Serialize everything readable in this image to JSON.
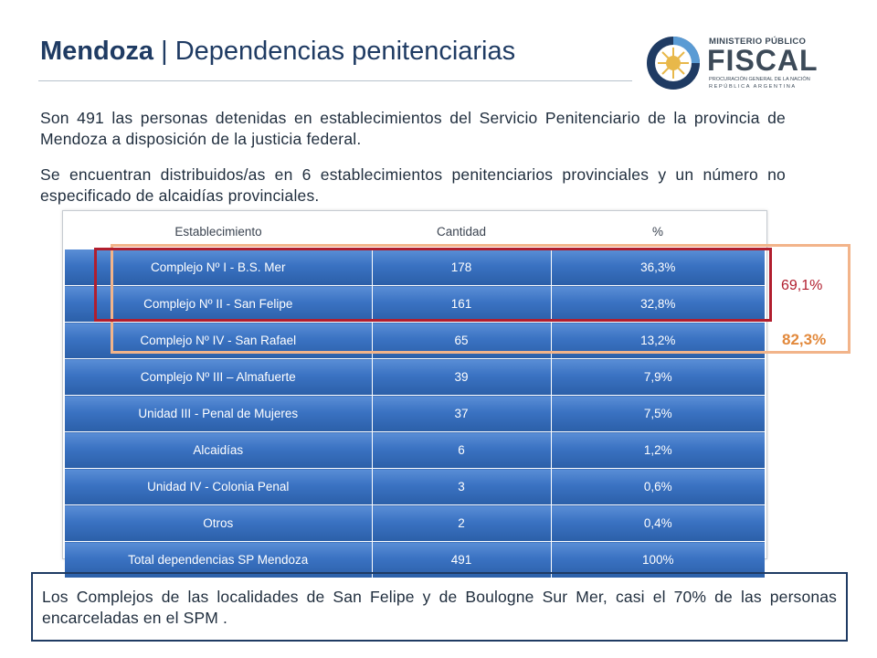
{
  "header": {
    "title_bold": "Mendoza",
    "title_rest": " | Dependencias  penitenciarias"
  },
  "logo": {
    "line1": "MINISTERIO PÚBLICO",
    "line2": "FISCAL",
    "line3": "PROCURACIÓN GENERAL DE LA NACIÓN",
    "line4": "REPÚBLICA ARGENTINA",
    "colors": {
      "ring_dark": "#1f3b63",
      "ring_light": "#5a9bd4",
      "sun": "#e8b84a"
    }
  },
  "paragraphs": [
    "Son 491 las personas detenidas en establecimientos del Servicio Penitenciario de la provincia de Mendoza a disposición de la justicia federal.",
    "Se encuentran distribuidos/as en 6 establecimientos penitenciarios provinciales y un número no especificado de alcaidías provinciales."
  ],
  "table": {
    "headers": [
      "Establecimiento",
      "Cantidad",
      "%"
    ],
    "rows": [
      [
        "Complejo Nº I - B.S. Mer",
        "178",
        "36,3%"
      ],
      [
        "Complejo Nº II - San Felipe",
        "161",
        "32,8%"
      ],
      [
        "Complejo Nº IV - San Rafael",
        "65",
        "13,2%"
      ],
      [
        "Complejo Nº III – Almafuerte",
        "39",
        "7,9%"
      ],
      [
        "Unidad III - Penal de Mujeres",
        "37",
        "7,5%"
      ],
      [
        "Alcaidías",
        "6",
        "1,2%"
      ],
      [
        "Unidad IV - Colonia Penal",
        "3",
        "0,6%"
      ],
      [
        "Otros",
        "2",
        "0,4%"
      ],
      [
        "Total dependencias SP Mendoza",
        "491",
        "100%"
      ]
    ]
  },
  "highlights": {
    "red_label": "69,1%",
    "orange_label": "82,3%",
    "red_color": "#b11e2e",
    "orange_color": "#f2b48a"
  },
  "note": "Los Complejos de las localidades de San Felipe y de Boulogne Sur Mer, casi el 70% de las personas encarceladas en el SPM ."
}
